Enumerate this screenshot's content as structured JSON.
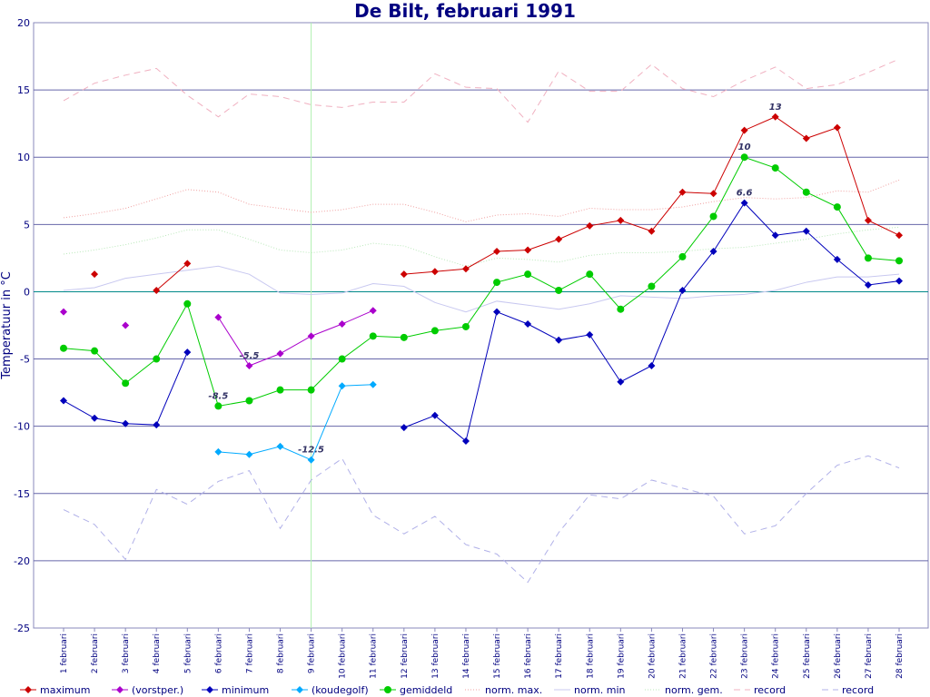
{
  "chart_data": {
    "type": "line",
    "title": "De Bilt, februari 1991",
    "xlabel": "",
    "ylabel": "Temperatuur in °C",
    "ylim": [
      -25,
      20
    ],
    "yticks": [
      -25,
      -20,
      -15,
      -10,
      -5,
      0,
      5,
      10,
      15,
      20
    ],
    "grid": true,
    "legend_position": "bottom",
    "categories": [
      "1 februari",
      "2 februari",
      "3 februari",
      "4 februari",
      "5 februari",
      "6 februari",
      "7 februari",
      "8 februari",
      "9 februari",
      "10 februari",
      "11 februari",
      "12 februari",
      "13 februari",
      "14 februari",
      "15 februari",
      "16 februari",
      "17 februari",
      "18 februari",
      "19 februari",
      "20 februari",
      "21 februari",
      "22 februari",
      "23 februari",
      "24 februari",
      "25 februari",
      "26 februari",
      "27 februari",
      "28 februari"
    ],
    "series": [
      {
        "name": "maximum",
        "style": "line-marker",
        "marker": "diamond",
        "color": "#cc0000",
        "values": [
          null,
          1.3,
          null,
          0.1,
          2.1,
          null,
          null,
          null,
          null,
          null,
          null,
          1.3,
          1.5,
          1.7,
          3.0,
          3.1,
          3.9,
          4.9,
          5.3,
          4.5,
          7.4,
          7.3,
          12.0,
          13.0,
          11.4,
          12.2,
          5.3,
          4.2
        ]
      },
      {
        "name": "(vorstper.)",
        "style": "line-marker",
        "marker": "diamond",
        "color": "#aa00cc",
        "values": [
          -1.5,
          null,
          -2.5,
          null,
          null,
          -1.9,
          -5.5,
          -4.6,
          -3.3,
          -2.4,
          -1.4,
          null,
          null,
          null,
          null,
          null,
          null,
          null,
          null,
          null,
          null,
          null,
          null,
          null,
          null,
          null,
          null,
          null
        ]
      },
      {
        "name": "minimum",
        "style": "line-marker",
        "marker": "diamond",
        "color": "#0000bb",
        "values": [
          -8.1,
          -9.4,
          -9.8,
          -9.9,
          -4.5,
          null,
          null,
          null,
          null,
          null,
          null,
          -10.1,
          -9.2,
          -11.1,
          -1.5,
          -2.4,
          -3.6,
          -3.2,
          -6.7,
          -5.5,
          0.1,
          3.0,
          6.6,
          4.2,
          4.5,
          2.4,
          0.5,
          0.8
        ]
      },
      {
        "name": "(koudegolf)",
        "style": "line-marker",
        "marker": "diamond",
        "color": "#00aaff",
        "values": [
          null,
          null,
          null,
          null,
          null,
          -11.9,
          -12.1,
          -11.5,
          -12.5,
          -7.0,
          -6.9,
          null,
          null,
          null,
          null,
          null,
          null,
          null,
          null,
          null,
          null,
          null,
          null,
          null,
          null,
          null,
          null,
          null
        ]
      },
      {
        "name": "gemiddeld",
        "style": "line-marker",
        "marker": "circle",
        "color": "#00cc00",
        "values": [
          -4.2,
          -4.4,
          -6.8,
          -5.0,
          -0.9,
          -8.5,
          -8.1,
          -7.3,
          -7.3,
          -5.0,
          -3.3,
          -3.4,
          -2.9,
          -2.6,
          0.7,
          1.3,
          0.1,
          1.3,
          -1.3,
          0.4,
          2.6,
          5.6,
          10.0,
          9.2,
          7.4,
          6.3,
          2.5,
          2.3
        ]
      },
      {
        "name": "norm. max.",
        "style": "dotted",
        "color": "#f0a0a0",
        "values": [
          5.5,
          5.8,
          6.2,
          6.9,
          7.6,
          7.4,
          6.5,
          6.2,
          5.9,
          6.1,
          6.5,
          6.5,
          5.9,
          5.2,
          5.7,
          5.8,
          5.6,
          6.2,
          6.1,
          6.1,
          6.3,
          6.7,
          7.0,
          6.9,
          7.0,
          7.5,
          7.4,
          8.3
        ]
      },
      {
        "name": "norm. min",
        "style": "solid-light",
        "color": "#c8c8f0",
        "values": [
          0.1,
          0.3,
          1.0,
          1.3,
          1.6,
          1.9,
          1.3,
          -0.1,
          -0.2,
          -0.1,
          0.6,
          0.4,
          -0.8,
          -1.5,
          -0.7,
          -1.0,
          -1.3,
          -0.9,
          -0.3,
          -0.4,
          -0.5,
          -0.3,
          -0.2,
          0.1,
          0.7,
          1.1,
          1.1,
          1.3
        ]
      },
      {
        "name": "norm. gem.",
        "style": "dotted-light",
        "color": "#b8e8b8",
        "values": [
          2.8,
          3.1,
          3.5,
          4.0,
          4.6,
          4.6,
          3.9,
          3.1,
          2.9,
          3.1,
          3.6,
          3.4,
          2.6,
          1.9,
          2.5,
          2.4,
          2.2,
          2.7,
          2.9,
          2.9,
          3.0,
          3.2,
          3.3,
          3.6,
          3.9,
          4.3,
          4.6,
          4.8
        ]
      },
      {
        "name": "record",
        "style": "dashed",
        "color": "#f0b0c0",
        "values": [
          14.2,
          15.5,
          16.1,
          16.6,
          14.6,
          13.0,
          14.7,
          14.5,
          13.9,
          13.7,
          14.1,
          14.1,
          16.2,
          15.2,
          15.1,
          12.6,
          16.4,
          14.9,
          14.9,
          16.9,
          15.1,
          14.5,
          15.7,
          16.7,
          15.1,
          15.4,
          16.3,
          17.3
        ]
      },
      {
        "name": "record",
        "style": "dashed",
        "color": "#b0b0e8",
        "values": [
          -16.2,
          -17.3,
          -19.9,
          -14.7,
          -15.8,
          -14.1,
          -13.3,
          -17.6,
          -14.0,
          -12.4,
          -16.6,
          -18.0,
          -16.7,
          -18.8,
          -19.5,
          -21.6,
          -17.9,
          -15.1,
          -15.4,
          -14.0,
          -14.6,
          -15.2,
          -18.0,
          -17.4,
          -15.0,
          -12.9,
          -12.2,
          -13.1
        ]
      }
    ],
    "annotations": [
      {
        "text": "-5.5",
        "x": "7 februari",
        "y": -5.5,
        "color": "#333366"
      },
      {
        "text": "-8.5",
        "x": "6 februari",
        "y": -8.5,
        "color": "#333366"
      },
      {
        "text": "-12.5",
        "x": "9 februari",
        "y": -12.5,
        "color": "#333366"
      },
      {
        "text": "13",
        "x": "24 februari",
        "y": 13.0,
        "color": "#333366"
      },
      {
        "text": "10",
        "x": "23 februari",
        "y": 10.0,
        "color": "#333366"
      },
      {
        "text": "6.6",
        "x": "23 februari",
        "y": 6.6,
        "color": "#333366"
      }
    ],
    "vertical_marker": {
      "x": "9 februari",
      "color": "#b0f0b0"
    },
    "zero_line_color": "#008888",
    "grid_color": "#6666aa",
    "axis_color": "#8888bb"
  }
}
